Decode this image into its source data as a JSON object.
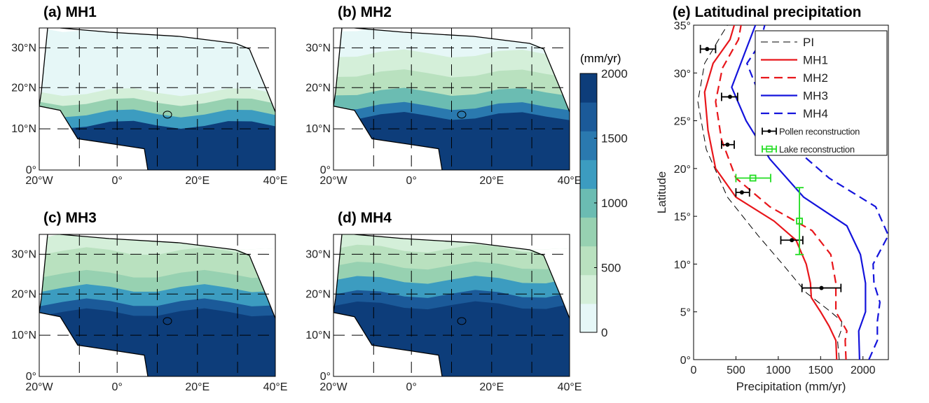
{
  "maps": [
    {
      "label": "(a) MH1",
      "id": "a"
    },
    {
      "label": "(b) MH2",
      "id": "b"
    },
    {
      "label": "(c) MH3",
      "id": "c"
    },
    {
      "label": "(d) MH4",
      "id": "d"
    }
  ],
  "map_axes": {
    "lon_ticks": [
      "20°W",
      "0°",
      "20°E",
      "40°E"
    ],
    "lat_ticks": [
      "30°N",
      "20°N",
      "10°N",
      "0°"
    ]
  },
  "colorbar": {
    "unit": "(mm/yr)",
    "ticks": [
      2000,
      1500,
      1000,
      500,
      0
    ],
    "colors": [
      "#e6f7f7",
      "#d4efd9",
      "#b9e1bf",
      "#97d1b1",
      "#6bbcb2",
      "#3c9cc0",
      "#2a79af",
      "#1b5a99",
      "#0d3d7a"
    ]
  },
  "chart_data": {
    "type": "line",
    "title": "(e) Latitudinal precipitation",
    "xlabel": "Precipitation (mm/yr)",
    "ylabel": "Latitude",
    "xlim": [
      0,
      2300
    ],
    "ylim": [
      0,
      35
    ],
    "xticks": [
      0,
      500,
      1000,
      1500,
      2000
    ],
    "yticks": [
      "0°",
      "5°",
      "10°",
      "15°",
      "20°",
      "25°",
      "30°",
      "35°"
    ],
    "legend": [
      "PI",
      "MH1",
      "MH2",
      "MH3",
      "MH4",
      "Pollen reconstruction",
      "Lake reconstruction"
    ],
    "series": [
      {
        "name": "PI",
        "color": "#000000",
        "dash": "10,6",
        "points": [
          [
            1720,
            0
          ],
          [
            1700,
            2
          ],
          [
            1740,
            3
          ],
          [
            1750,
            4
          ],
          [
            1620,
            5
          ],
          [
            1330,
            7
          ],
          [
            1050,
            10
          ],
          [
            760,
            13
          ],
          [
            400,
            17
          ],
          [
            150,
            22
          ],
          [
            50,
            27
          ],
          [
            130,
            31
          ],
          [
            330,
            34
          ],
          [
            400,
            35
          ]
        ]
      },
      {
        "name": "MH1",
        "color": "#e8161b",
        "dash": "",
        "points": [
          [
            1690,
            0
          ],
          [
            1680,
            2
          ],
          [
            1600,
            3.5
          ],
          [
            1500,
            5
          ],
          [
            1390,
            6.5
          ],
          [
            1380,
            8
          ],
          [
            1330,
            10
          ],
          [
            1210,
            12.5
          ],
          [
            950,
            14.5
          ],
          [
            500,
            17
          ],
          [
            260,
            20
          ],
          [
            170,
            24
          ],
          [
            130,
            28
          ],
          [
            230,
            31
          ],
          [
            430,
            33.5
          ],
          [
            480,
            35
          ]
        ]
      },
      {
        "name": "MH2",
        "color": "#e8161b",
        "dash": "12,7",
        "points": [
          [
            1800,
            0
          ],
          [
            1790,
            2
          ],
          [
            1810,
            3
          ],
          [
            1680,
            5
          ],
          [
            1680,
            8
          ],
          [
            1620,
            11
          ],
          [
            1400,
            13.5
          ],
          [
            900,
            16
          ],
          [
            500,
            19
          ],
          [
            330,
            23
          ],
          [
            260,
            27
          ],
          [
            340,
            30.5
          ],
          [
            530,
            33.5
          ],
          [
            560,
            35
          ]
        ]
      },
      {
        "name": "MH3",
        "color": "#1414dc",
        "dash": "",
        "points": [
          [
            1960,
            0
          ],
          [
            1950,
            3
          ],
          [
            2030,
            5
          ],
          [
            2030,
            8
          ],
          [
            1970,
            11
          ],
          [
            1810,
            14
          ],
          [
            1300,
            17
          ],
          [
            900,
            21
          ],
          [
            620,
            25
          ],
          [
            450,
            28.5
          ],
          [
            600,
            32
          ],
          [
            730,
            35
          ]
        ]
      },
      {
        "name": "MH4",
        "color": "#1414dc",
        "dash": "12,7",
        "points": [
          [
            2070,
            0
          ],
          [
            2170,
            2
          ],
          [
            2170,
            4
          ],
          [
            2200,
            6
          ],
          [
            2130,
            8
          ],
          [
            2120,
            10
          ],
          [
            2300,
            13
          ],
          [
            2150,
            16
          ],
          [
            1600,
            19
          ],
          [
            1080,
            23
          ],
          [
            810,
            27
          ],
          [
            630,
            31
          ],
          [
            780,
            33
          ],
          [
            840,
            35
          ]
        ]
      }
    ],
    "pollen": [
      {
        "x": 160,
        "y": 32.5,
        "xerr": [
          80,
          260
        ]
      },
      {
        "x": 430,
        "y": 27.5,
        "xerr": [
          330,
          520
        ]
      },
      {
        "x": 400,
        "y": 22.5,
        "xerr": [
          330,
          480
        ]
      },
      {
        "x": 570,
        "y": 17.5,
        "xerr": [
          500,
          660
        ]
      },
      {
        "x": 1160,
        "y": 12.5,
        "xerr": [
          1030,
          1290
        ]
      },
      {
        "x": 1510,
        "y": 7.5,
        "xerr": [
          1280,
          1740
        ]
      }
    ],
    "lake": [
      {
        "x": 700,
        "y": 19,
        "xerr": [
          500,
          910
        ]
      },
      {
        "x": 1250,
        "y": 14.5,
        "yerr": [
          11,
          18
        ]
      }
    ]
  }
}
